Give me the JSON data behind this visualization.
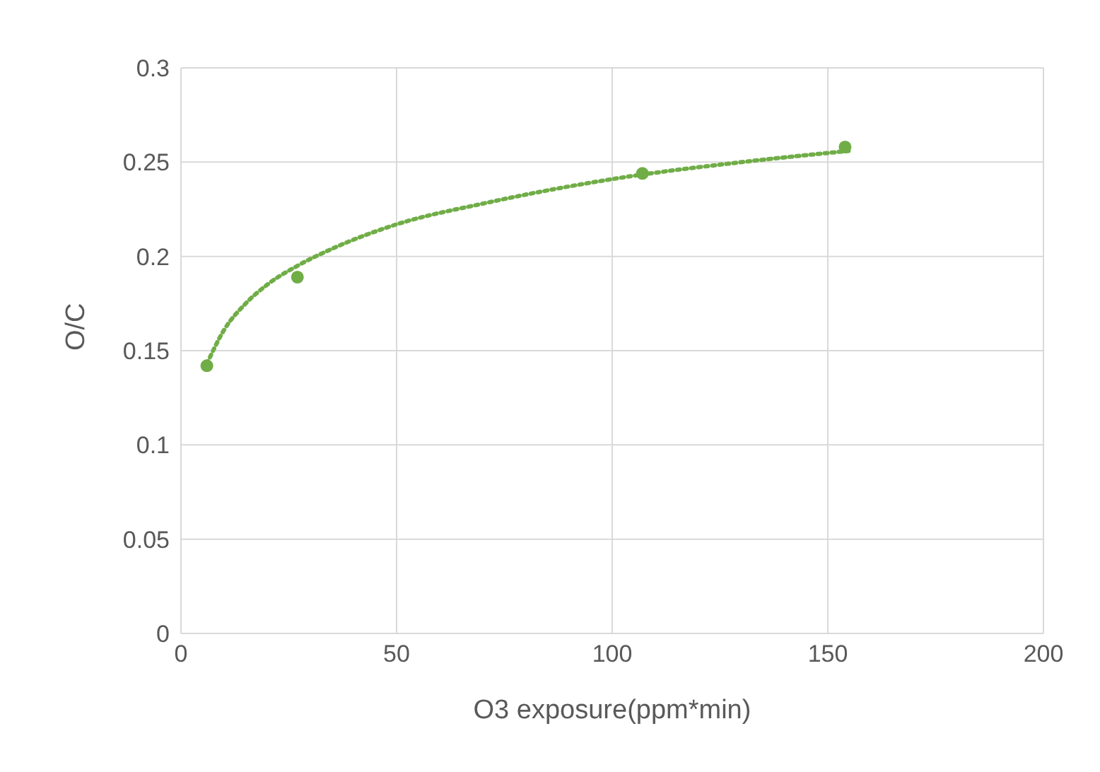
{
  "chart_data": {
    "type": "scatter",
    "xlabel": "O3 exposure(ppm*min)",
    "ylabel": "O/C",
    "xlim": [
      0,
      200
    ],
    "xticks": [
      0,
      50,
      100,
      150,
      200
    ],
    "ylim": [
      0,
      0.3
    ],
    "yticks": [
      0,
      0.05,
      0.1,
      0.15,
      0.2,
      0.25,
      0.3
    ],
    "grid": true,
    "legend": false,
    "series": [
      {
        "color": "#70ad47",
        "marker": "circle",
        "x": [
          6,
          27,
          107,
          154
        ],
        "values": [
          0.142,
          0.189,
          0.244,
          0.258
        ]
      },
      {
        "type": "line",
        "color": "#70ad47",
        "marker": "none",
        "line_style": "dotted",
        "x": [
          6,
          10,
          15,
          20,
          27,
          35,
          50,
          70,
          100,
          130,
          155
        ],
        "values": [
          0.143,
          0.161,
          0.175,
          0.185,
          0.195,
          0.204,
          0.217,
          0.228,
          0.241,
          0.25,
          0.256
        ]
      }
    ]
  }
}
